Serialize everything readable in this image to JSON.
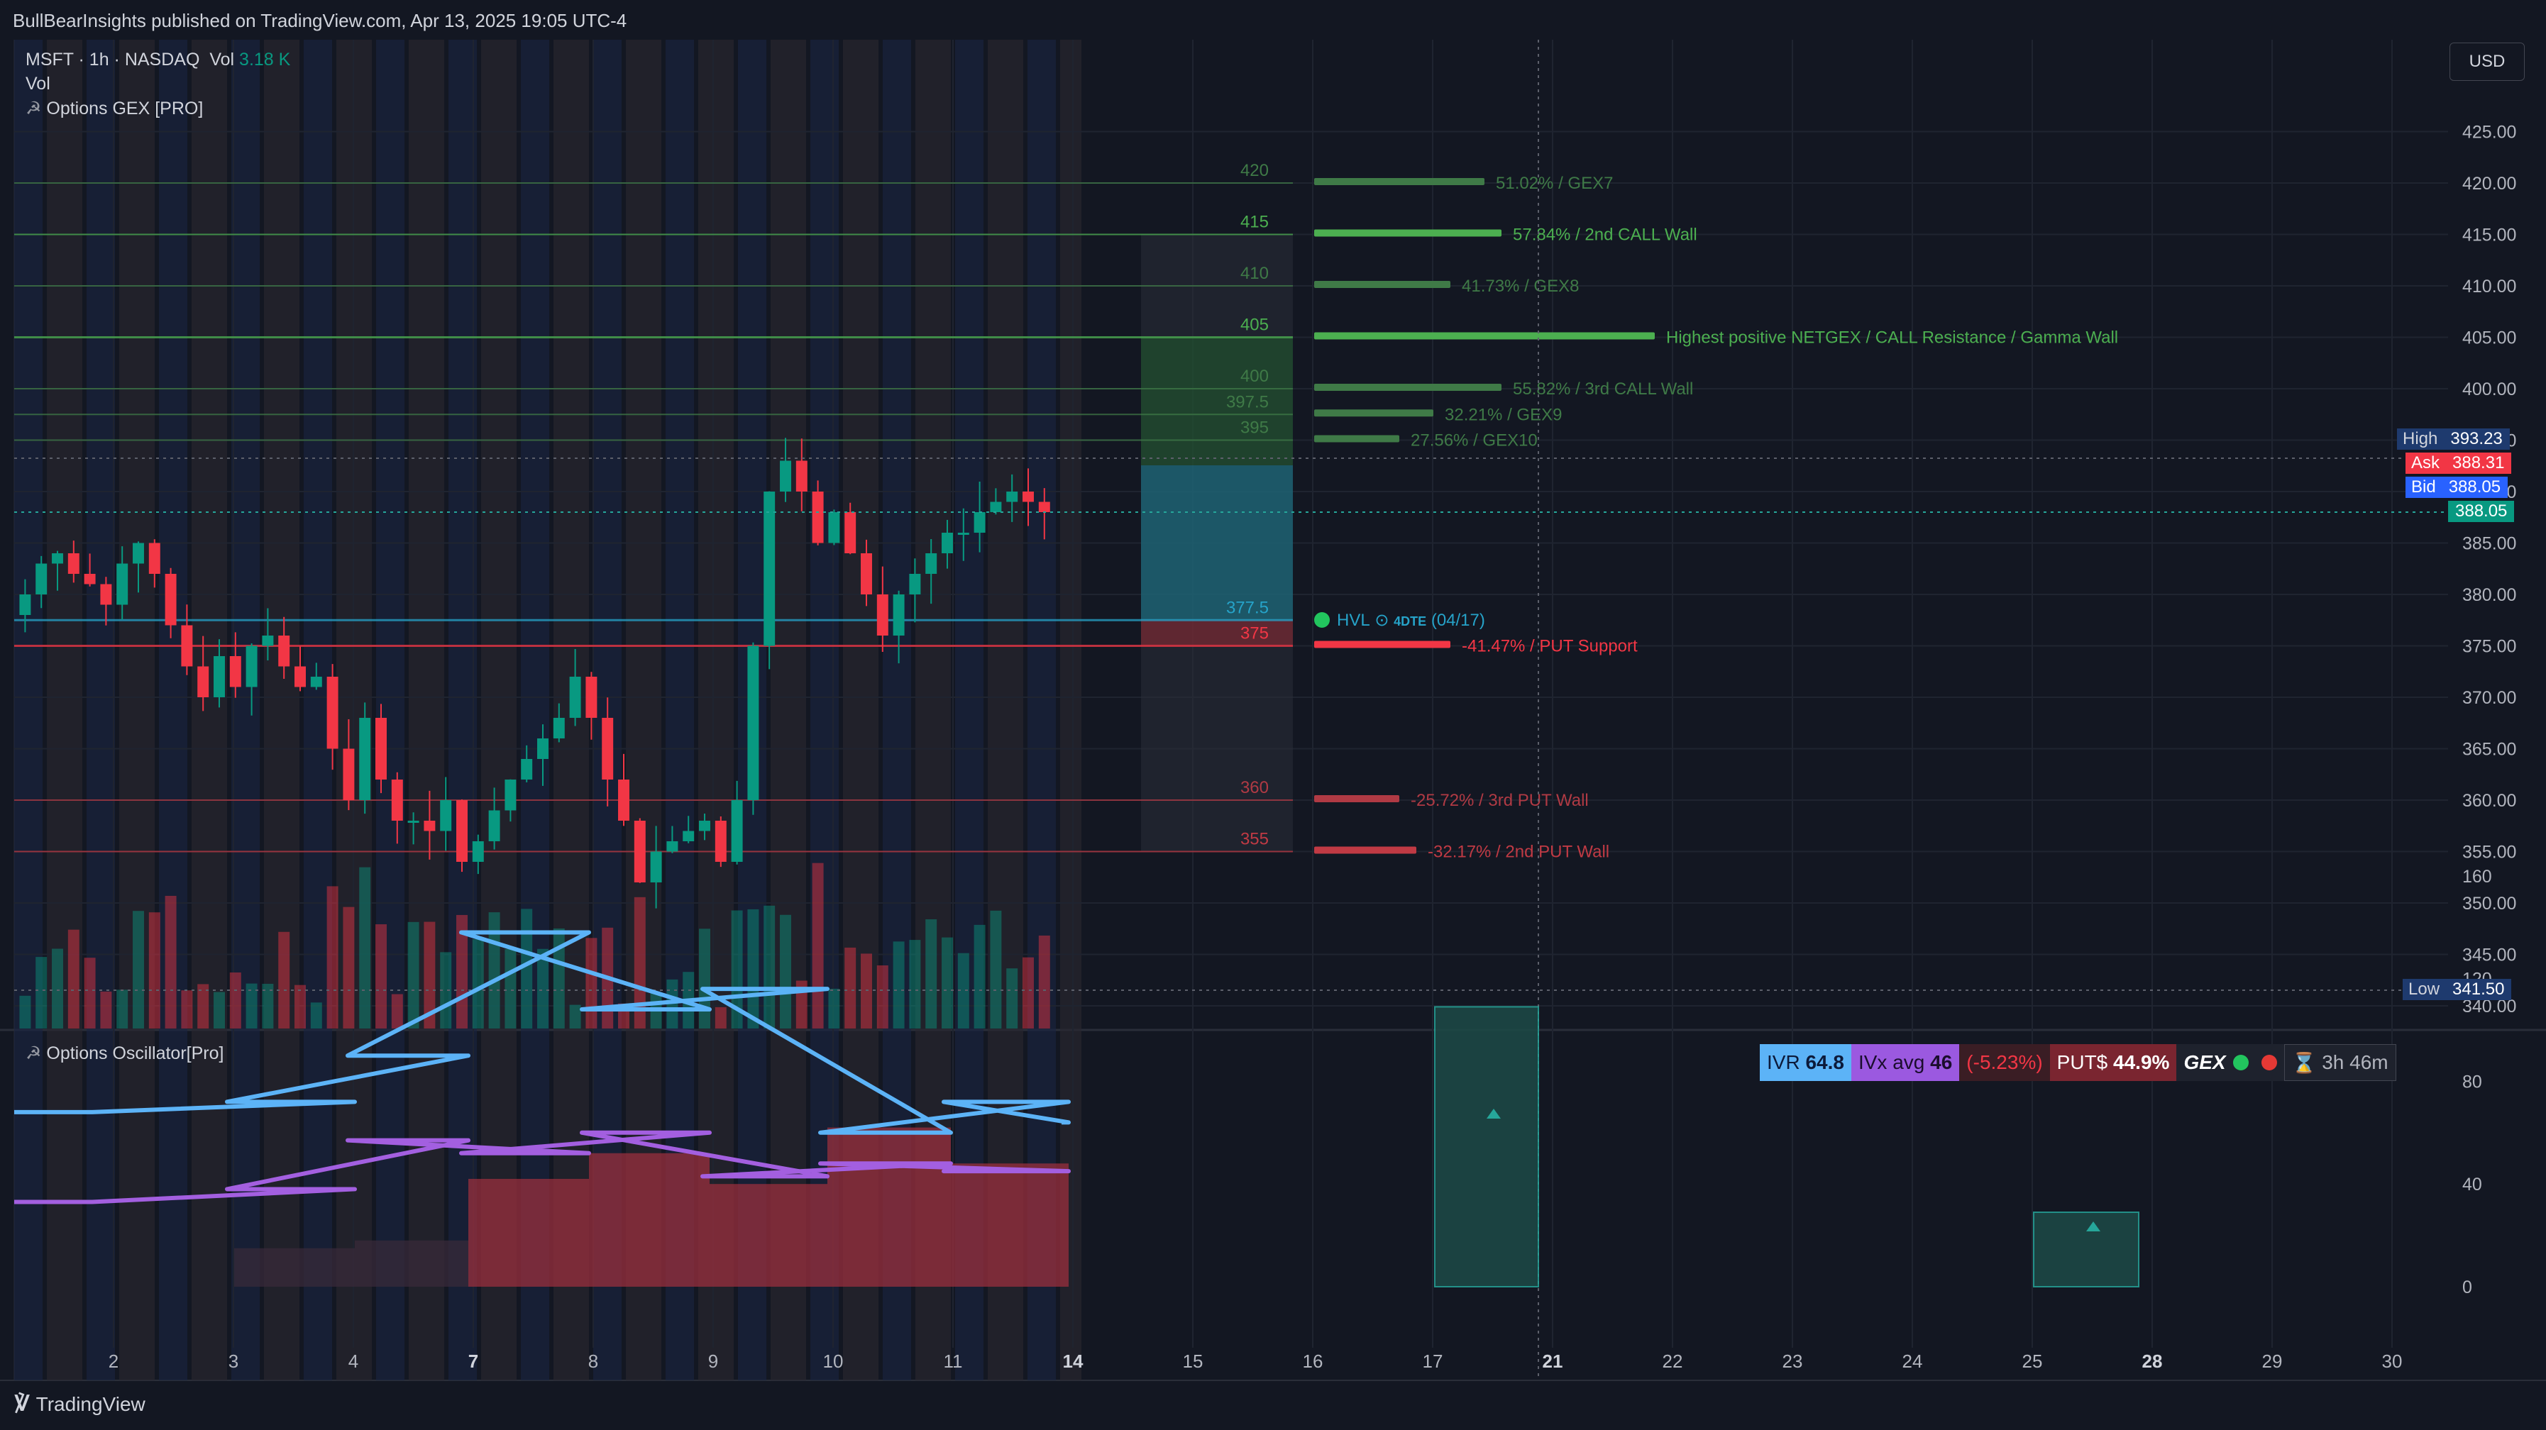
{
  "header": {
    "published": "BullBearInsights published on TradingView.com, Apr 13, 2025 19:05 UTC-4"
  },
  "legend": {
    "symbol": "MSFT · 1h · NASDAQ",
    "vol_label": "Vol",
    "vol_value": "3.18 K",
    "vol_sub": "Vol",
    "indicator": "Options GEX [PRO]"
  },
  "currency_button": "USD",
  "price_axis": {
    "ticks": [
      "425.00",
      "420.00",
      "415.00",
      "410.00",
      "405.00",
      "400.00",
      "395.00",
      "390.00",
      "385.00",
      "380.00",
      "375.00",
      "370.00",
      "365.00",
      "360.00",
      "355.00",
      "350.00",
      "345.00",
      "340.00"
    ],
    "high_label": "High",
    "high_value": "393.23",
    "ask_label": "Ask",
    "ask_value": "388.31",
    "bid_label": "Bid",
    "bid_value": "388.05",
    "last_value": "388.05",
    "low_label": "Low",
    "low_value": "341.50"
  },
  "gex_levels": [
    {
      "strike": "420",
      "label": "51.02% / GEX7",
      "color": "#3f7a47"
    },
    {
      "strike": "415",
      "label": "57.84% / 2nd CALL Wall",
      "color": "#4caf50"
    },
    {
      "strike": "410",
      "label": "41.73% / GEX8",
      "color": "#3f7a47"
    },
    {
      "strike": "405",
      "label": "Highest positive NETGEX / CALL Resistance / Gamma Wall",
      "color": "#4caf50"
    },
    {
      "strike": "400",
      "label": "55.82% / 3rd CALL Wall",
      "color": "#3f7a47"
    },
    {
      "strike": "397.5",
      "label": "32.21% / GEX9",
      "color": "#3f7a47"
    },
    {
      "strike": "395",
      "label": "27.56% / GEX10",
      "color": "#3f7a47"
    },
    {
      "strike": "377.5",
      "label": "HVL",
      "color": "#26a3c9"
    },
    {
      "strike": "375",
      "label": "-41.47% / PUT Support",
      "color": "#f23645"
    },
    {
      "strike": "360",
      "label": "-25.72% / 3rd PUT Wall",
      "color": "#b03a44"
    },
    {
      "strike": "355",
      "label": "-32.17% / 2nd PUT Wall",
      "color": "#c03a44"
    }
  ],
  "hvl": {
    "label": "HVL",
    "icon": "clock-icon",
    "dte": "4DTE",
    "date": "(04/17)"
  },
  "oscillator": {
    "title": "Options Oscillator[Pro]",
    "ticks": [
      "160",
      "120",
      "80",
      "40",
      "0"
    ]
  },
  "stats": {
    "ivr_label": "IVR",
    "ivr_value": "64.8",
    "ivx_label": "IVx avg",
    "ivx_value": "46",
    "change": "(-5.23%)",
    "puts_label": "PUT$",
    "puts_value": "44.9%",
    "gex_label": "GEX",
    "timer": "3h 46m"
  },
  "time_axis": [
    "2",
    "3",
    "4",
    "7",
    "8",
    "9",
    "10",
    "11",
    "14",
    "15",
    "16",
    "17",
    "21",
    "22",
    "23",
    "24",
    "25",
    "28",
    "29",
    "30"
  ],
  "footer": {
    "brand": "TradingView"
  },
  "chart_data": {
    "type": "candlestick",
    "symbol": "MSFT",
    "interval": "1h",
    "ylim": [
      338,
      428
    ],
    "last_price": 388.05,
    "high": 393.23,
    "low": 341.5,
    "levels": [
      420,
      415,
      410,
      405,
      400,
      397.5,
      395,
      377.5,
      375,
      360,
      355
    ],
    "oscillator_series": [
      {
        "name": "blue",
        "color": "#5cb3f7",
        "values": [
          [
            0,
            68
          ],
          [
            3,
            72
          ],
          [
            4,
            90
          ],
          [
            5,
            138
          ],
          [
            6,
            108
          ],
          [
            7,
            116
          ],
          [
            8,
            60
          ],
          [
            9,
            72
          ],
          [
            10,
            64
          ]
        ]
      },
      {
        "name": "purple",
        "color": "#a35fe0",
        "values": [
          [
            0,
            33
          ],
          [
            3,
            38
          ],
          [
            4,
            57
          ],
          [
            5,
            52
          ],
          [
            6,
            60
          ],
          [
            7,
            43
          ],
          [
            8,
            48
          ],
          [
            9,
            45
          ],
          [
            10,
            45
          ]
        ]
      }
    ]
  }
}
